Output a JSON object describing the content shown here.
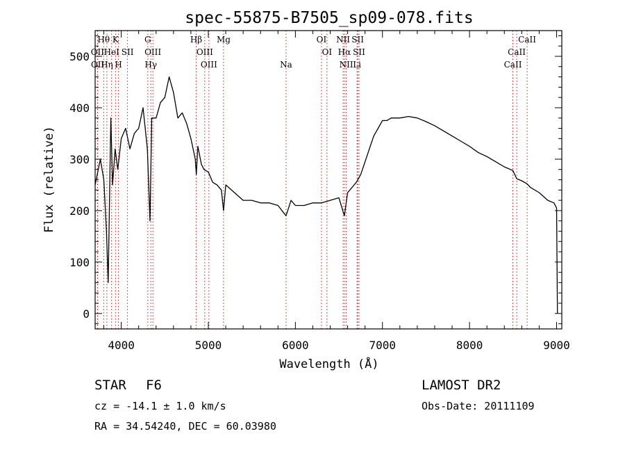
{
  "chart_data": {
    "type": "line",
    "title": "spec-55875-B7505_sp09-078.fits",
    "xlabel": "Wavelength (Å)",
    "ylabel": "Flux (relative)",
    "xlim": [
      3700,
      9060
    ],
    "ylim": [
      -30,
      550
    ],
    "xticks": [
      4000,
      5000,
      6000,
      7000,
      8000,
      9000
    ],
    "yticks": [
      0,
      100,
      200,
      300,
      400,
      500
    ],
    "grid": false,
    "series": [
      {
        "x": [
          3700,
          3760,
          3800,
          3830,
          3850,
          3880,
          3900,
          3930,
          3960,
          4000,
          4050,
          4100,
          4150,
          4200,
          4250,
          4300,
          4330,
          4350,
          4400,
          4450,
          4500,
          4550,
          4600,
          4650,
          4700,
          4750,
          4800,
          4850,
          4862,
          4880,
          4920,
          4950,
          5000,
          5050,
          5100,
          5150,
          5175,
          5200,
          5300,
          5400,
          5500,
          5600,
          5700,
          5800,
          5893,
          5950,
          6000,
          6100,
          6200,
          6300,
          6400,
          6500,
          6563,
          6600,
          6650,
          6700,
          6750,
          6800,
          6850,
          6900,
          6950,
          7000,
          7050,
          7100,
          7200,
          7300,
          7400,
          7500,
          7600,
          7700,
          7800,
          7900,
          8000,
          8100,
          8200,
          8300,
          8400,
          8498,
          8542,
          8600,
          8662,
          8700,
          8800,
          8900,
          8970,
          9000,
          9010
        ],
        "y": [
          250,
          300,
          260,
          160,
          60,
          380,
          250,
          320,
          280,
          340,
          360,
          320,
          350,
          360,
          400,
          320,
          180,
          380,
          380,
          410,
          420,
          460,
          430,
          380,
          390,
          370,
          340,
          300,
          270,
          325,
          290,
          280,
          275,
          255,
          250,
          240,
          200,
          250,
          235,
          220,
          220,
          215,
          215,
          210,
          190,
          220,
          210,
          210,
          215,
          215,
          220,
          225,
          190,
          235,
          245,
          255,
          270,
          295,
          320,
          345,
          360,
          375,
          375,
          380,
          380,
          383,
          380,
          373,
          365,
          355,
          345,
          335,
          325,
          313,
          305,
          295,
          285,
          278,
          262,
          258,
          252,
          245,
          235,
          220,
          215,
          205,
          0
        ]
      }
    ],
    "lines": [
      {
        "name": "Hθ",
        "x": 3798,
        "row": 0
      },
      {
        "name": "K",
        "x": 3934,
        "row": 0
      },
      {
        "name": "G",
        "x": 4305,
        "row": 0
      },
      {
        "name": "Hβ",
        "x": 4861,
        "row": 0
      },
      {
        "name": "Mg",
        "x": 5175,
        "row": 0
      },
      {
        "name": "OI",
        "x": 6300,
        "row": 0
      },
      {
        "name": "NII",
        "x": 6548,
        "row": 0
      },
      {
        "name": "SII",
        "x": 6716,
        "row": 0
      },
      {
        "name": "CaII",
        "x": 8662,
        "row": 0
      },
      {
        "name": "OII",
        "x": 3727,
        "row": 1
      },
      {
        "name": "HeI",
        "x": 3889,
        "row": 1
      },
      {
        "name": "SII",
        "x": 4072,
        "row": 1
      },
      {
        "name": "OIII",
        "x": 4363,
        "row": 1
      },
      {
        "name": "OIII",
        "x": 4959,
        "row": 1
      },
      {
        "name": "OI",
        "x": 6363,
        "row": 1
      },
      {
        "name": "Hα",
        "x": 6563,
        "row": 1
      },
      {
        "name": "SII",
        "x": 6731,
        "row": 1
      },
      {
        "name": "CaII",
        "x": 8542,
        "row": 1
      },
      {
        "name": "OII",
        "x": 3729,
        "row": 2
      },
      {
        "name": "Hη",
        "x": 3835,
        "row": 2
      },
      {
        "name": "H",
        "x": 3968,
        "row": 2
      },
      {
        "name": "Hγ",
        "x": 4340,
        "row": 2
      },
      {
        "name": "OIII",
        "x": 5007,
        "row": 2
      },
      {
        "name": "Na",
        "x": 5893,
        "row": 2
      },
      {
        "name": "NII",
        "x": 6584,
        "row": 2
      },
      {
        "name": "Li",
        "x": 6708,
        "row": 2
      },
      {
        "name": "CaII",
        "x": 8498,
        "row": 2
      }
    ]
  },
  "footer": {
    "class_label": "STAR",
    "subclass": "F6",
    "survey": "LAMOST DR2",
    "cz": "cz = -14.1 ± 1.0 km/s",
    "obs_date": "Obs-Date: 20111109",
    "coords": "RA =  34.54240, DEC =  60.03980"
  }
}
